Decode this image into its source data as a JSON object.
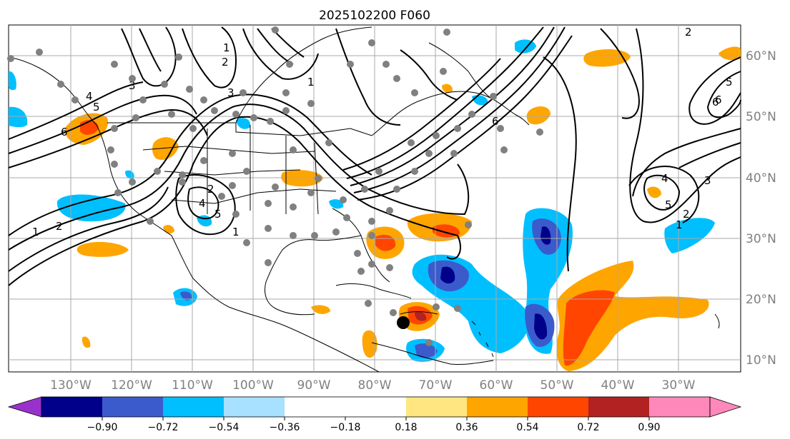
{
  "title": "2025102200 F060",
  "map": {
    "lon_labels": [
      "130°W",
      "120°W",
      "110°W",
      "100°W",
      "90°W",
      "80°W",
      "70°W",
      "60°W",
      "50°W",
      "40°W",
      "30°W"
    ],
    "lat_labels": [
      "60°N",
      "50°N",
      "40°N",
      "30°N",
      "20°N",
      "10°N"
    ],
    "contour_labels": [
      "1",
      "2",
      "3",
      "4",
      "5",
      "6",
      "1",
      "2",
      "3",
      "4",
      "5",
      "6",
      "1",
      "2",
      "4",
      "5",
      "6",
      "1",
      "2",
      "3",
      "4",
      "5",
      "6",
      "1",
      "2"
    ]
  },
  "colorbar": {
    "ticks": [
      "−0.90",
      "−0.72",
      "−0.54",
      "−0.36",
      "−0.18",
      "0.18",
      "0.36",
      "0.54",
      "0.72",
      "0.90"
    ],
    "colors": [
      "#9932cc",
      "#00008b",
      "#3b5bcc",
      "#00bfff",
      "#a8e0ff",
      "#ffffff",
      "#ffe680",
      "#ffa500",
      "#ff4500",
      "#b22222",
      "#ff88bb"
    ]
  },
  "colors": {
    "grid": "#a9a9a9",
    "coast": "#000000",
    "station": "#808080"
  }
}
